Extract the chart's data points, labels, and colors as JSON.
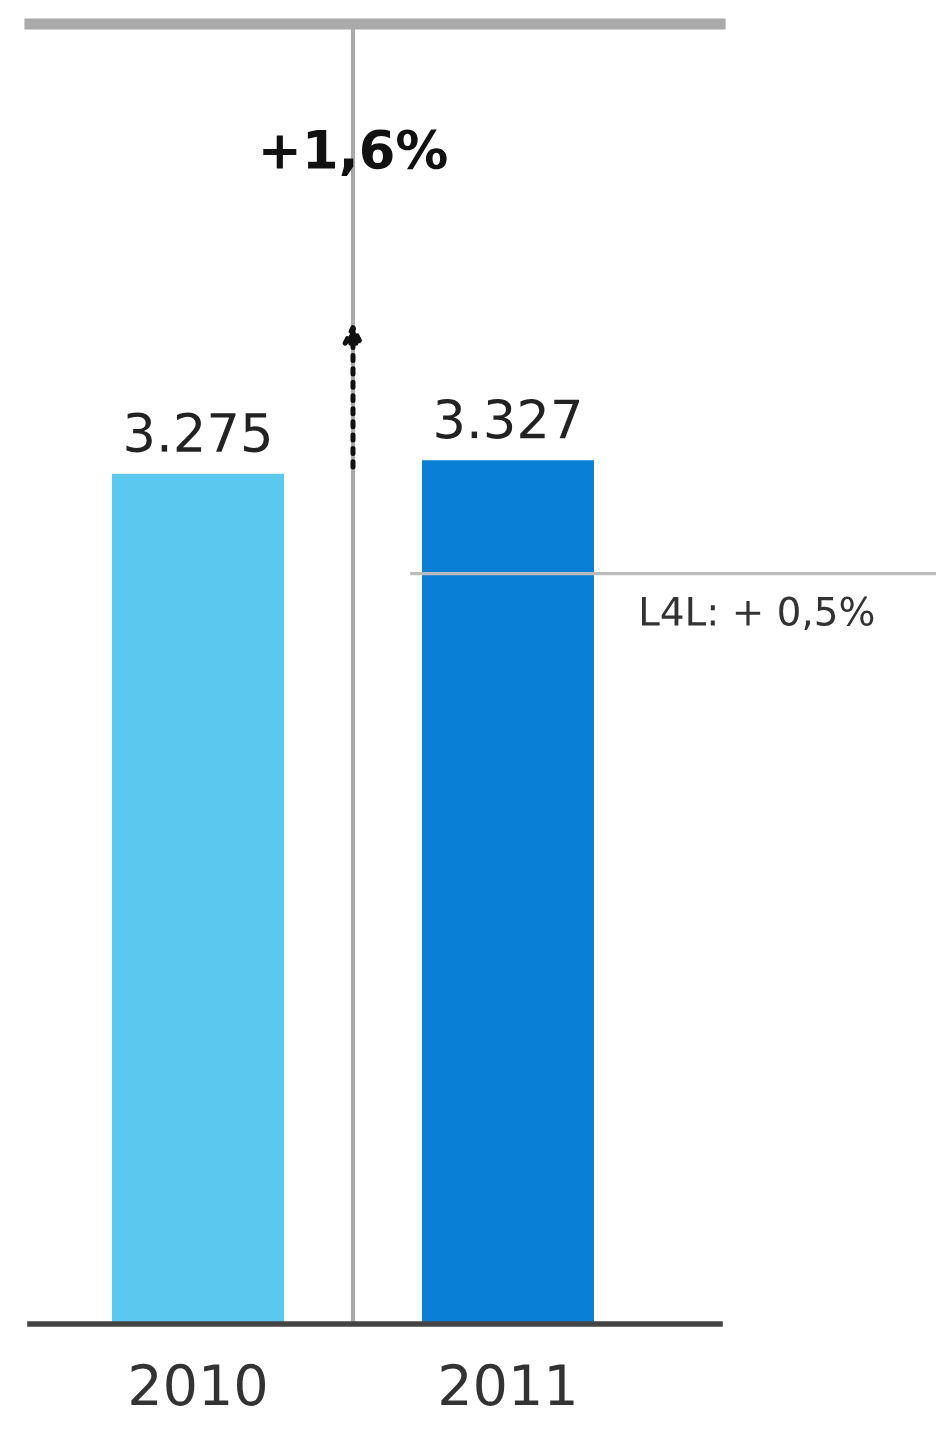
{
  "chart_data": {
    "type": "bar",
    "categories": [
      "2010",
      "2011"
    ],
    "values": [
      3275,
      3327
    ],
    "value_labels": [
      "3.275",
      "3.327"
    ],
    "colors": [
      "#5bc8f0",
      "#0a7fd6"
    ],
    "tick_labels": "x",
    "ref_lines": [
      {
        "axis": "y",
        "value": 2890,
        "label": "L4L: + 0,5%",
        "color": "#bbbbbb"
      }
    ],
    "annotations": [
      "+1,6%"
    ]
  }
}
